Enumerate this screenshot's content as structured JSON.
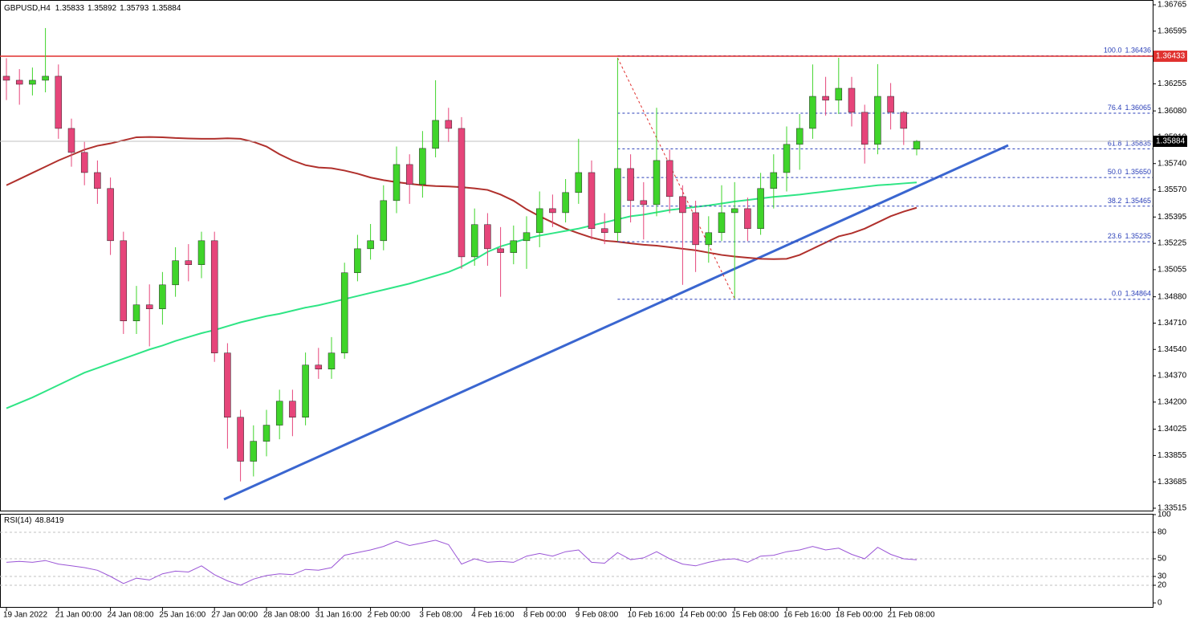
{
  "chart_data": {
    "type": "candlestick",
    "title": "GBPUSD,H4",
    "categories": [
      "19 Jan 2022",
      null,
      null,
      null,
      "21 Jan 00:00",
      null,
      null,
      null,
      "24 Jan 08:00",
      null,
      null,
      null,
      "25 Jan 16:00",
      null,
      null,
      null,
      "27 Jan 00:00",
      null,
      null,
      null,
      "28 Jan 08:00",
      null,
      null,
      null,
      "31 Jan 16:00",
      null,
      null,
      null,
      "2 Feb 00:00",
      null,
      null,
      null,
      "3 Feb 08:00",
      null,
      null,
      null,
      "4 Feb 16:00",
      null,
      null,
      null,
      "8 Feb 00:00",
      null,
      null,
      null,
      "9 Feb 08:00",
      null,
      null,
      null,
      "10 Feb 16:00",
      null,
      null,
      null,
      "14 Feb 00:00",
      null,
      null,
      null,
      "15 Feb 08:00",
      null,
      null,
      null,
      "16 Feb 16:00",
      null,
      null,
      null,
      "18 Feb 00:00",
      null,
      null,
      null,
      "21 Feb 08:00",
      null,
      null
    ],
    "open": [
      1.36304,
      1.36278,
      1.36252,
      1.36278,
      1.36304,
      1.35967,
      1.35812,
      1.35682,
      1.35579,
      1.35242,
      1.34724,
      1.34828,
      1.34802,
      1.34957,
      1.35113,
      1.35087,
      1.35242,
      1.34517,
      1.34102,
      1.33818,
      1.33947,
      1.34051,
      1.34206,
      1.34102,
      1.34439,
      1.34413,
      1.34517,
      1.35035,
      1.3519,
      1.35242,
      1.35501,
      1.35734,
      1.35605,
      1.35838,
      1.36019,
      1.35967,
      1.35138,
      1.35346,
      1.3519,
      1.35165,
      1.35242,
      1.35294,
      1.35449,
      1.35423,
      1.35553,
      1.35682,
      1.3532,
      1.35294,
      1.35708,
      1.35501,
      1.35475,
      1.3576,
      1.35527,
      1.35423,
      1.35216,
      1.35294,
      1.35423,
      1.35449,
      1.3532,
      1.35579,
      1.35682,
      1.35864,
      1.35967,
      1.36174,
      1.36149,
      1.36226,
      1.36071,
      1.35864,
      1.36174,
      1.36071,
      1.35833
    ],
    "high": [
      1.3642,
      1.3635,
      1.3636,
      1.36615,
      1.3638,
      1.3603,
      1.3588,
      1.3576,
      1.3565,
      1.353,
      1.3495,
      1.3496,
      1.3504,
      1.352,
      1.3522,
      1.353,
      1.353,
      1.3458,
      1.3415,
      1.3405,
      1.3415,
      1.3428,
      1.3428,
      1.3452,
      1.3455,
      1.3462,
      1.351,
      1.3528,
      1.3535,
      1.356,
      1.3585,
      1.358,
      1.3595,
      1.36278,
      1.361,
      1.3604,
      1.3545,
      1.3542,
      1.3533,
      1.3534,
      1.354,
      1.3556,
      1.3554,
      1.3564,
      1.359,
      1.3576,
      1.3542,
      1.36423,
      1.358,
      1.3562,
      1.361,
      1.3583,
      1.356,
      1.355,
      1.354,
      1.356,
      1.3562,
      1.3552,
      1.3568,
      1.358,
      1.3598,
      1.3606,
      1.3638,
      1.363,
      1.36423,
      1.363,
      1.3612,
      1.36382,
      1.3626,
      1.3608,
      1.35892
    ],
    "low": [
      1.3615,
      1.3612,
      1.3618,
      1.362,
      1.359,
      1.3572,
      1.356,
      1.3548,
      1.3515,
      1.3464,
      1.3464,
      1.3456,
      1.347,
      1.3488,
      1.3498,
      1.35,
      1.3446,
      1.339,
      1.33688,
      1.3372,
      1.3385,
      1.3396,
      1.3398,
      1.3405,
      1.3435,
      1.3435,
      1.3448,
      1.3498,
      1.3512,
      1.3518,
      1.3542,
      1.3548,
      1.3552,
      1.3578,
      1.3588,
      1.3506,
      1.3508,
      1.3508,
      1.3488,
      1.3509,
      1.3506,
      1.352,
      1.3533,
      1.3536,
      1.3548,
      1.3525,
      1.3522,
      1.3524,
      1.3536,
      1.3525,
      1.354,
      1.3542,
      1.34957,
      1.3504,
      1.351,
      1.3524,
      1.34869,
      1.3524,
      1.3528,
      1.3545,
      1.3556,
      1.357,
      1.359,
      1.3605,
      1.3606,
      1.3598,
      1.3574,
      1.358,
      1.3596,
      1.3586,
      1.35793
    ],
    "close": [
      1.36278,
      1.36252,
      1.36278,
      1.36304,
      1.35967,
      1.35812,
      1.35682,
      1.35579,
      1.35242,
      1.34724,
      1.34828,
      1.34802,
      1.34957,
      1.35113,
      1.35087,
      1.35242,
      1.34517,
      1.34102,
      1.33818,
      1.33947,
      1.34051,
      1.34206,
      1.34102,
      1.34439,
      1.34413,
      1.34517,
      1.35035,
      1.3519,
      1.35242,
      1.35501,
      1.35734,
      1.35605,
      1.35838,
      1.36019,
      1.35967,
      1.35138,
      1.35346,
      1.3519,
      1.35165,
      1.35242,
      1.35294,
      1.35449,
      1.35423,
      1.35553,
      1.35682,
      1.3532,
      1.35294,
      1.35708,
      1.35501,
      1.35475,
      1.3576,
      1.35527,
      1.35423,
      1.35216,
      1.35294,
      1.35423,
      1.35449,
      1.3532,
      1.35579,
      1.35682,
      1.35864,
      1.35967,
      1.36174,
      1.36149,
      1.36226,
      1.36071,
      1.35864,
      1.36174,
      1.36071,
      1.35967,
      1.35884
    ],
    "colors": {
      "up": "#3fd42a",
      "down": "#e6457a"
    },
    "moving_averages": [
      {
        "color": "#b0302c",
        "values": [
          1.356,
          1.3564,
          1.3568,
          1.3572,
          1.3576,
          1.35795,
          1.3583,
          1.35855,
          1.3587,
          1.3589,
          1.3591,
          1.35912,
          1.3591,
          1.35905,
          1.35902,
          1.359,
          1.359,
          1.35903,
          1.359,
          1.3588,
          1.3585,
          1.358,
          1.3576,
          1.3573,
          1.35715,
          1.3571,
          1.35695,
          1.35675,
          1.3565,
          1.35633,
          1.3562,
          1.3561,
          1.356,
          1.35595,
          1.35592,
          1.35588,
          1.3558,
          1.3557,
          1.3554,
          1.355,
          1.35445,
          1.354,
          1.3536,
          1.3532,
          1.3529,
          1.35262,
          1.35242,
          1.35235,
          1.35225,
          1.35216,
          1.3521,
          1.352,
          1.3519,
          1.3518,
          1.35165,
          1.3515,
          1.3514,
          1.35132,
          1.35125,
          1.35123,
          1.35125,
          1.3515,
          1.3519,
          1.3523,
          1.3527,
          1.3529,
          1.3532,
          1.3536,
          1.354,
          1.3543,
          1.35455
        ]
      },
      {
        "color": "#2fe585",
        "values": [
          1.3416,
          1.34195,
          1.3423,
          1.3427,
          1.3431,
          1.3435,
          1.3439,
          1.3442,
          1.3445,
          1.3448,
          1.3451,
          1.3454,
          1.34565,
          1.34595,
          1.3462,
          1.34645,
          1.34665,
          1.3469,
          1.34715,
          1.34735,
          1.34755,
          1.3477,
          1.3479,
          1.3481,
          1.34825,
          1.34845,
          1.34865,
          1.34885,
          1.34905,
          1.34925,
          1.34945,
          1.34965,
          1.3499,
          1.35015,
          1.3504,
          1.35075,
          1.3512,
          1.3517,
          1.35205,
          1.3523,
          1.35255,
          1.35275,
          1.3529,
          1.35305,
          1.3532,
          1.3534,
          1.3536,
          1.3538,
          1.354,
          1.3541,
          1.35425,
          1.3544,
          1.3545,
          1.3546,
          1.3547,
          1.35482,
          1.35495,
          1.35505,
          1.35515,
          1.35525,
          1.35532,
          1.3554,
          1.3555,
          1.3556,
          1.3557,
          1.3558,
          1.3559,
          1.356,
          1.35605,
          1.35612,
          1.35618
        ]
      }
    ],
    "ylim": [
      1.33515,
      1.36765
    ],
    "yticks": [
      1.36765,
      1.36595,
      1.36425,
      1.36255,
      {
        "value": 1.3608,
        "label": "1.36080"
      },
      {
        "value": 1.3591,
        "label": "1.35910"
      },
      {
        "value": 1.3574,
        "label": "1.35740"
      },
      {
        "value": 1.3557,
        "label": "1.35570"
      },
      1.35395,
      1.35225,
      1.35055,
      {
        "value": 1.3488,
        "label": "1.34880"
      },
      {
        "value": 1.3471,
        "label": "1.34710"
      },
      {
        "value": 1.3454,
        "label": "1.34540"
      },
      {
        "value": 1.3437,
        "label": "1.34370"
      },
      {
        "value": 1.342,
        "label": "1.34200"
      },
      1.34025,
      1.33855,
      1.33685,
      1.33515
    ],
    "hline": {
      "value": 1.36433,
      "color": "#e0312f"
    },
    "fibonacci": {
      "color": "#2a3fb8",
      "anchor_color": "#e0312f",
      "levels": [
        {
          "label": "100.0",
          "price": 1.36436
        },
        {
          "label": "76.4",
          "price": 1.36065
        },
        {
          "label": "61.8",
          "price": 1.35835
        },
        {
          "label": "50.0",
          "price": {
            "value": 1.3565,
            "label": "1.35650"
          }
        },
        {
          "label": "38.2",
          "price": 1.35465
        },
        {
          "label": "23.6",
          "price": 1.35235
        },
        {
          "label": "0.0",
          "price": 1.34864
        }
      ]
    },
    "trendline_color": "#3a66d0",
    "rsi": {
      "title": "RSI(14)",
      "color": "#9a55d6",
      "ylim": [
        0,
        100
      ],
      "yticks": [
        100,
        80,
        50,
        30,
        20,
        0
      ],
      "values": [
        46,
        47,
        46,
        48,
        44,
        42,
        40,
        37,
        30,
        22,
        28,
        26,
        33,
        36,
        35,
        42,
        32,
        25,
        20,
        27,
        31,
        33,
        32,
        38,
        37,
        40,
        54,
        57,
        60,
        64,
        70,
        65,
        68,
        71,
        66,
        44,
        50,
        46,
        47,
        46,
        53,
        56,
        53,
        58,
        60,
        46,
        45,
        57,
        49,
        51,
        58,
        50,
        44,
        42,
        46,
        49,
        50,
        46,
        53,
        54,
        58,
        60,
        64,
        60,
        62,
        55,
        50,
        63,
        55,
        50,
        48.8419
      ]
    }
  }
}
